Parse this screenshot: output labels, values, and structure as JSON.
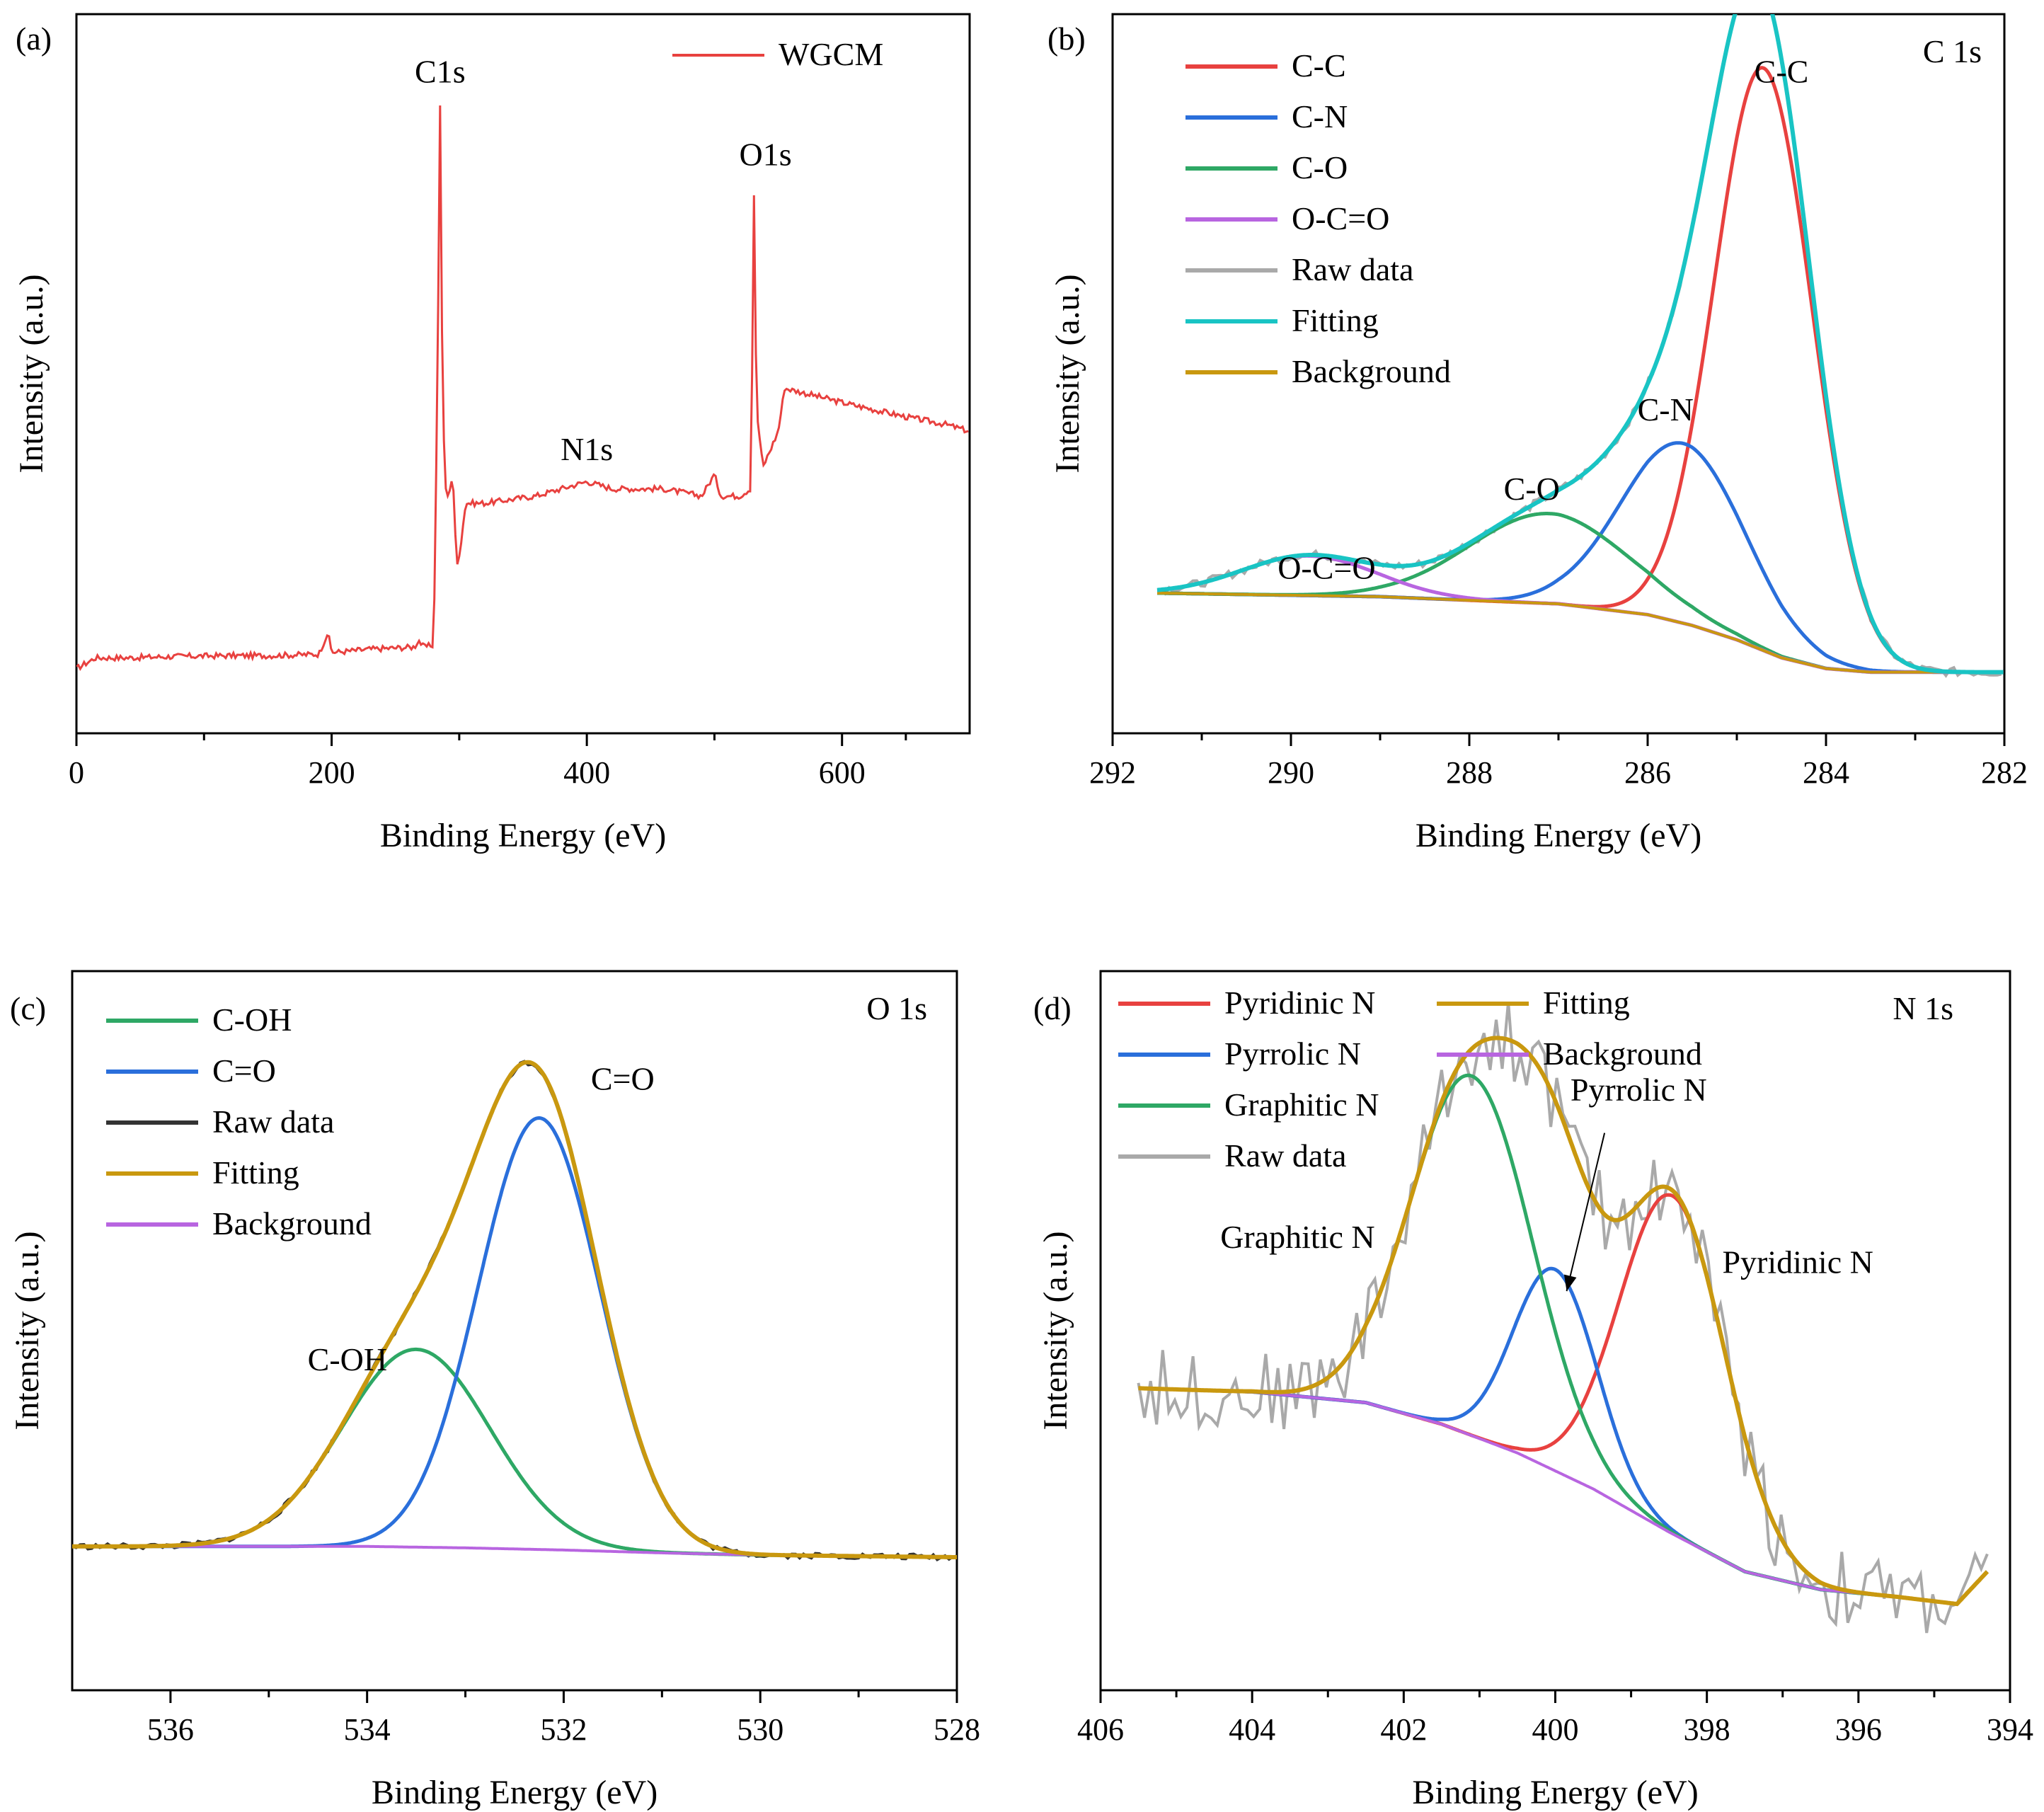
{
  "figure_title": "",
  "colors": {
    "red": "#e8413f",
    "blue": "#2a6fdb",
    "green": "#2ea865",
    "purple": "#b865e0",
    "gray": "#a9a9a9",
    "cyan": "#19c4c4",
    "gold": "#c9980f",
    "olive": "#b8960e",
    "black": "#333333"
  },
  "chart_data": [
    {
      "panel_label": "(a)",
      "type": "line",
      "xlabel": "Binding Energy (eV)",
      "ylabel": "Intensity (a.u.)",
      "xlim": [
        0,
        700
      ],
      "ylim": [
        0,
        1
      ],
      "reverse_x": false,
      "xticks": [
        0,
        200,
        400,
        600
      ],
      "xtick_labels": [
        "0",
        "200",
        "400",
        "600"
      ],
      "legend": [
        {
          "label": "WGCM",
          "color": "#e8413f"
        }
      ],
      "peak_labels": [
        {
          "text": "C1s",
          "x": 285,
          "y": 0.905
        },
        {
          "text": "N1s",
          "x": 400,
          "y": 0.38
        },
        {
          "text": "O1s",
          "x": 540,
          "y": 0.79
        }
      ],
      "series": [
        {
          "name": "WGCM",
          "color": "#e8413f",
          "x": [
            0,
            15,
            40,
            80,
            120,
            150,
            190,
            197,
            200,
            205,
            230,
            265,
            268,
            272,
            280,
            283,
            285,
            287,
            290,
            295,
            298,
            301,
            305,
            310,
            320,
            360,
            380,
            400,
            420,
            460,
            490,
            500,
            505,
            520,
            528,
            530,
            531,
            533,
            538,
            550,
            555,
            600,
            650,
            680,
            700
          ],
          "y": [
            0.09,
            0.105,
            0.105,
            0.107,
            0.108,
            0.108,
            0.11,
            0.14,
            0.113,
            0.113,
            0.117,
            0.12,
            0.13,
            0.12,
            0.123,
            0.5,
            0.875,
            0.45,
            0.32,
            0.36,
            0.23,
            0.26,
            0.32,
            0.32,
            0.32,
            0.33,
            0.34,
            0.35,
            0.34,
            0.34,
            0.33,
            0.36,
            0.33,
            0.33,
            0.34,
            0.55,
            0.75,
            0.45,
            0.37,
            0.42,
            0.48,
            0.46,
            0.44,
            0.43,
            0.42
          ]
        }
      ]
    },
    {
      "panel_label": "(b)",
      "type": "line",
      "title": "C 1s",
      "xlabel": "Binding Energy (eV)",
      "ylabel": "Intensity (a.u.)",
      "xlim": [
        292,
        282
      ],
      "ylim": [
        0,
        1
      ],
      "reverse_x": true,
      "xticks": [
        292,
        290,
        288,
        286,
        284,
        282
      ],
      "xtick_labels": [
        "292",
        "290",
        "288",
        "286",
        "284",
        "282"
      ],
      "legend": [
        {
          "label": "C-C",
          "color": "#e8413f"
        },
        {
          "label": "C-N",
          "color": "#2a6fdb"
        },
        {
          "label": "C-O",
          "color": "#2ea865"
        },
        {
          "label": "O-C=O",
          "color": "#b865e0"
        },
        {
          "label": "Raw data",
          "color": "#a9a9a9"
        },
        {
          "label": "Fitting",
          "color": "#19c4c4"
        },
        {
          "label": "Background",
          "color": "#c9980f"
        }
      ],
      "peak_labels": [
        {
          "text": "C-C",
          "x": 284.5,
          "y": 0.905
        },
        {
          "text": "C-N",
          "x": 285.8,
          "y": 0.435
        },
        {
          "text": "C-O",
          "x": 287.3,
          "y": 0.325
        },
        {
          "text": "O-C=O",
          "x": 289.6,
          "y": 0.215
        }
      ],
      "background": {
        "x": [
          291.5,
          289,
          287,
          286,
          285.5,
          285,
          284.5,
          284,
          283.5,
          283,
          282
        ],
        "y": [
          0.195,
          0.19,
          0.18,
          0.165,
          0.15,
          0.13,
          0.105,
          0.09,
          0.085,
          0.085,
          0.085
        ]
      },
      "peaks": [
        {
          "name": "C-C",
          "color": "#e8413f",
          "center": 284.7,
          "sigma": 0.55,
          "height": 0.81
        },
        {
          "name": "C-N",
          "color": "#2a6fdb",
          "center": 285.6,
          "sigma": 0.7,
          "height": 0.25
        },
        {
          "name": "C-O",
          "color": "#2ea865",
          "center": 287.1,
          "sigma": 0.9,
          "height": 0.125
        },
        {
          "name": "O-C=O",
          "color": "#b865e0",
          "center": 289.8,
          "sigma": 0.75,
          "height": 0.055
        }
      ],
      "fit_color": "#19c4c4",
      "background_color": "#c9980f",
      "raw_color": "#a9a9a9",
      "raw_noise": 0.006
    },
    {
      "panel_label": "(c)",
      "type": "line",
      "title": "O 1s",
      "xlabel": "Binding Energy (eV)",
      "ylabel": "Intensity (a.u.)",
      "xlim": [
        537,
        528
      ],
      "ylim": [
        0,
        1
      ],
      "reverse_x": true,
      "xticks": [
        536,
        534,
        532,
        530,
        528
      ],
      "xtick_labels": [
        "536",
        "534",
        "532",
        "530",
        "528"
      ],
      "legend": [
        {
          "label": "C-OH",
          "color": "#2ea865"
        },
        {
          "label": "C=O",
          "color": "#2a6fdb"
        },
        {
          "label": "Raw data",
          "color": "#333333"
        },
        {
          "label": "Fitting",
          "color": "#c9980f"
        },
        {
          "label": "Background",
          "color": "#b865e0"
        }
      ],
      "peak_labels": [
        {
          "text": "C-OH",
          "x": 534.2,
          "y": 0.445
        },
        {
          "text": "C=O",
          "x": 531.4,
          "y": 0.835
        }
      ],
      "background": {
        "x": [
          537,
          534,
          533,
          532,
          531,
          530,
          528
        ],
        "y": [
          0.2,
          0.2,
          0.198,
          0.195,
          0.191,
          0.188,
          0.185
        ]
      },
      "peaks": [
        {
          "name": "C-OH",
          "color": "#2ea865",
          "center": 533.5,
          "sigma": 0.75,
          "height": 0.275
        },
        {
          "name": "C=O",
          "color": "#2a6fdb",
          "center": 532.25,
          "sigma": 0.62,
          "height": 0.6
        }
      ],
      "fit_color": "#c9980f",
      "background_color": "#b865e0",
      "raw_color": "#333333",
      "raw_noise": 0.004
    },
    {
      "panel_label": "(d)",
      "type": "line",
      "title": "N 1s",
      "xlabel": "Binding Energy (eV)",
      "ylabel": "Intensity (a.u.)",
      "xlim": [
        406,
        394
      ],
      "ylim": [
        0,
        1
      ],
      "reverse_x": true,
      "xticks": [
        406,
        404,
        402,
        400,
        398,
        396,
        394
      ],
      "xtick_labels": [
        "406",
        "404",
        "402",
        "400",
        "398",
        "396",
        "394"
      ],
      "legend": [
        {
          "label": "Pyridinic N",
          "color": "#e8413f"
        },
        {
          "label": "Pyrrolic N",
          "color": "#2a6fdb"
        },
        {
          "label": "Graphitic N",
          "color": "#2ea865"
        },
        {
          "label": "Raw data",
          "color": "#a9a9a9"
        },
        {
          "label": "Fitting",
          "color": "#c9980f"
        },
        {
          "label": "Background",
          "color": "#b865e0"
        }
      ],
      "peak_labels": [
        {
          "text": "Graphitic N",
          "x": 403.4,
          "y": 0.615
        },
        {
          "text": "Pyrrolic N",
          "x": 398.9,
          "y": 0.82
        },
        {
          "text": "Pyridinic N",
          "x": 396.8,
          "y": 0.58
        }
      ],
      "background": {
        "x": [
          405.5,
          404,
          402.5,
          401.5,
          400.5,
          399.5,
          398.5,
          397.5,
          396.5,
          395.5,
          394.7,
          394.3
        ],
        "y": [
          0.42,
          0.415,
          0.4,
          0.37,
          0.33,
          0.28,
          0.22,
          0.165,
          0.14,
          0.13,
          0.12,
          0.165
        ]
      },
      "peaks": [
        {
          "name": "Pyridinic N",
          "color": "#e8413f",
          "center": 398.45,
          "sigma": 0.7,
          "height": 0.47
        },
        {
          "name": "Pyrrolic N",
          "color": "#2a6fdb",
          "center": 400.0,
          "sigma": 0.55,
          "height": 0.28
        },
        {
          "name": "Graphitic N",
          "color": "#2ea865",
          "center": 401.1,
          "sigma": 0.8,
          "height": 0.5
        }
      ],
      "fit_color": "#c9980f",
      "background_color": "#b865e0",
      "raw_color": "#a9a9a9",
      "raw_noise": 0.055,
      "annotation_arrow": {
        "from_x": 399.35,
        "from_y": 0.775,
        "to_x": 399.85,
        "to_y": 0.555
      }
    }
  ]
}
